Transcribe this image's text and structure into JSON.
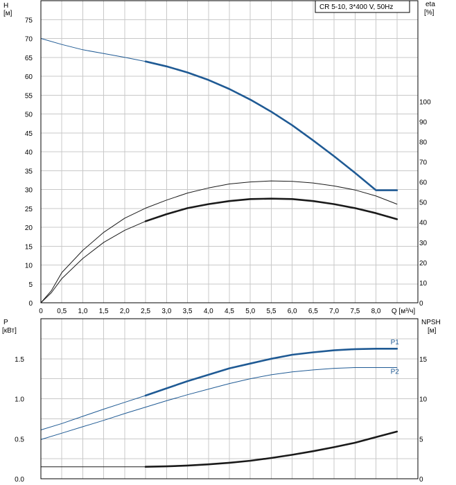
{
  "colors": {
    "blue": "#1f5a94",
    "black": "#1a1a1a",
    "grid": "#c8c8c8"
  },
  "chart_data": [
    {
      "type": "line",
      "title": "CR 5-10, 3*400 V, 50Hz",
      "xlabel": "Q [м³/ч]",
      "ylabel": "H",
      "ylabel_unit": "[м]",
      "y2label": "eta",
      "y2label_unit": "[%]",
      "xlim": [
        0,
        9
      ],
      "ylim": [
        0,
        80
      ],
      "y2lim": [
        0,
        150
      ],
      "grid": true,
      "x_ticks": [
        "0",
        "0,5",
        "1,0",
        "1,5",
        "2,0",
        "2,5",
        "3,0",
        "3,5",
        "4,0",
        "4,5",
        "5,0",
        "5,5",
        "6,0",
        "6,5",
        "7,0",
        "7,5",
        "8,0"
      ],
      "x_tick_values": [
        0,
        0.5,
        1,
        1.5,
        2,
        2.5,
        3,
        3.5,
        4,
        4.5,
        5,
        5.5,
        6,
        6.5,
        7,
        7.5,
        8
      ],
      "x_axis_label_value": 8.7,
      "y_ticks": [
        "0",
        "5",
        "10",
        "15",
        "20",
        "25",
        "30",
        "35",
        "40",
        "45",
        "50",
        "55",
        "60",
        "65",
        "70",
        "75"
      ],
      "y_tick_values": [
        0,
        5,
        10,
        15,
        20,
        25,
        30,
        35,
        40,
        45,
        50,
        55,
        60,
        65,
        70,
        75
      ],
      "y2_ticks": [
        "0",
        "10",
        "20",
        "30",
        "40",
        "50",
        "60",
        "70",
        "80",
        "90",
        "100"
      ],
      "y2_tick_values": [
        0,
        10,
        20,
        30,
        40,
        50,
        60,
        70,
        80,
        90,
        100
      ],
      "series": [
        {
          "axis": "y",
          "color": "blue",
          "thin": {
            "x": [
              0,
              0.5,
              1.0,
              1.5,
              2.0,
              2.5
            ],
            "y": [
              70.0,
              68.4,
              67.0,
              66.0,
              65.0,
              63.9
            ]
          },
          "thick": {
            "x": [
              2.5,
              3.0,
              3.5,
              4.0,
              4.5,
              5.0,
              5.5,
              6.0,
              6.5,
              7.0,
              7.5,
              8.0,
              8.5
            ],
            "y": [
              63.9,
              62.6,
              61.0,
              59.0,
              56.6,
              53.8,
              50.6,
              47.0,
              43.0,
              38.8,
              34.4,
              29.8,
              29.8
            ]
          }
        },
        {
          "axis": "y2",
          "color": "black",
          "thin": {
            "x": [
              0,
              0.25,
              0.5,
              1.0,
              1.5,
              2.0,
              2.5,
              3.0,
              3.5,
              4.0,
              4.5,
              5.0,
              5.5,
              6.0,
              6.5,
              7.0,
              7.5,
              8.0,
              8.5
            ],
            "y": [
              0,
              6,
              15,
              26,
              35,
              42,
              47,
              51,
              54.5,
              57,
              59,
              60,
              60.5,
              60.3,
              59.5,
              58,
              56,
              53,
              49
            ]
          }
        },
        {
          "axis": "y2",
          "color": "black",
          "thin": {
            "x": [
              0,
              0.25,
              0.5,
              1.0,
              1.5,
              2.0,
              2.5
            ],
            "y": [
              0,
              5,
              12,
              22,
              30,
              36,
              40.5
            ]
          },
          "thick": {
            "x": [
              2.5,
              3.0,
              3.5,
              4.0,
              4.5,
              5.0,
              5.5,
              6.0,
              6.5,
              7.0,
              7.5,
              8.0,
              8.5
            ],
            "y": [
              40.5,
              44,
              47,
              49,
              50.5,
              51.5,
              51.7,
              51.5,
              50.5,
              49,
              47,
              44.5,
              41.5
            ]
          }
        }
      ]
    },
    {
      "type": "line",
      "ylabel": "P",
      "ylabel_unit": "[кВт]",
      "y2label": "NPSH",
      "y2label_unit": "[м]",
      "xlim": [
        0,
        9
      ],
      "ylim": [
        0,
        2
      ],
      "y2lim": [
        0,
        20
      ],
      "grid": true,
      "y_ticks": [
        "0.0",
        "0.5",
        "1.0",
        "1.5"
      ],
      "y_tick_values": [
        0,
        0.5,
        1.0,
        1.5
      ],
      "y2_ticks": [
        "0",
        "5",
        "10",
        "15"
      ],
      "y2_tick_values": [
        0,
        5,
        10,
        15
      ],
      "series": [
        {
          "name": "P1",
          "axis": "y",
          "color": "blue",
          "label_x": 8.45,
          "label_y": 1.68,
          "thin": {
            "x": [
              0,
              0.5,
              1.0,
              1.5,
              2.0,
              2.5
            ],
            "y": [
              0.61,
              0.69,
              0.78,
              0.87,
              0.955,
              1.04
            ]
          },
          "thick": {
            "x": [
              2.5,
              3.0,
              3.5,
              4.0,
              4.5,
              5.0,
              5.5,
              6.0,
              6.5,
              7.0,
              7.5,
              8.0,
              8.5
            ],
            "y": [
              1.04,
              1.13,
              1.22,
              1.3,
              1.38,
              1.44,
              1.5,
              1.55,
              1.58,
              1.605,
              1.62,
              1.625,
              1.625
            ]
          }
        },
        {
          "name": "P2",
          "axis": "y",
          "color": "blue",
          "label_x": 8.45,
          "label_y": 1.31,
          "thin": {
            "x": [
              0,
              0.5,
              1.0,
              1.5,
              2.0,
              2.5,
              3.0,
              3.5,
              4.0,
              4.5,
              5.0,
              5.5,
              6.0,
              6.5,
              7.0,
              7.5,
              8.0,
              8.5
            ],
            "y": [
              0.49,
              0.57,
              0.65,
              0.73,
              0.815,
              0.895,
              0.975,
              1.05,
              1.12,
              1.19,
              1.25,
              1.3,
              1.335,
              1.36,
              1.38,
              1.39,
              1.39,
              1.39
            ]
          }
        },
        {
          "axis": "y2",
          "color": "black",
          "thin": {
            "x": [
              0,
              0.5,
              1.0,
              1.5,
              2.0,
              2.5
            ],
            "y": [
              1.5,
              1.5,
              1.5,
              1.5,
              1.5,
              1.5
            ]
          },
          "thick": {
            "x": [
              2.5,
              3.0,
              3.5,
              4.0,
              4.5,
              5.0,
              5.5,
              6.0,
              6.5,
              7.0,
              7.5,
              8.0,
              8.5
            ],
            "y": [
              1.5,
              1.55,
              1.65,
              1.8,
              2.0,
              2.25,
              2.6,
              3.0,
              3.45,
              3.95,
              4.5,
              5.2,
              5.9
            ]
          }
        }
      ]
    }
  ]
}
